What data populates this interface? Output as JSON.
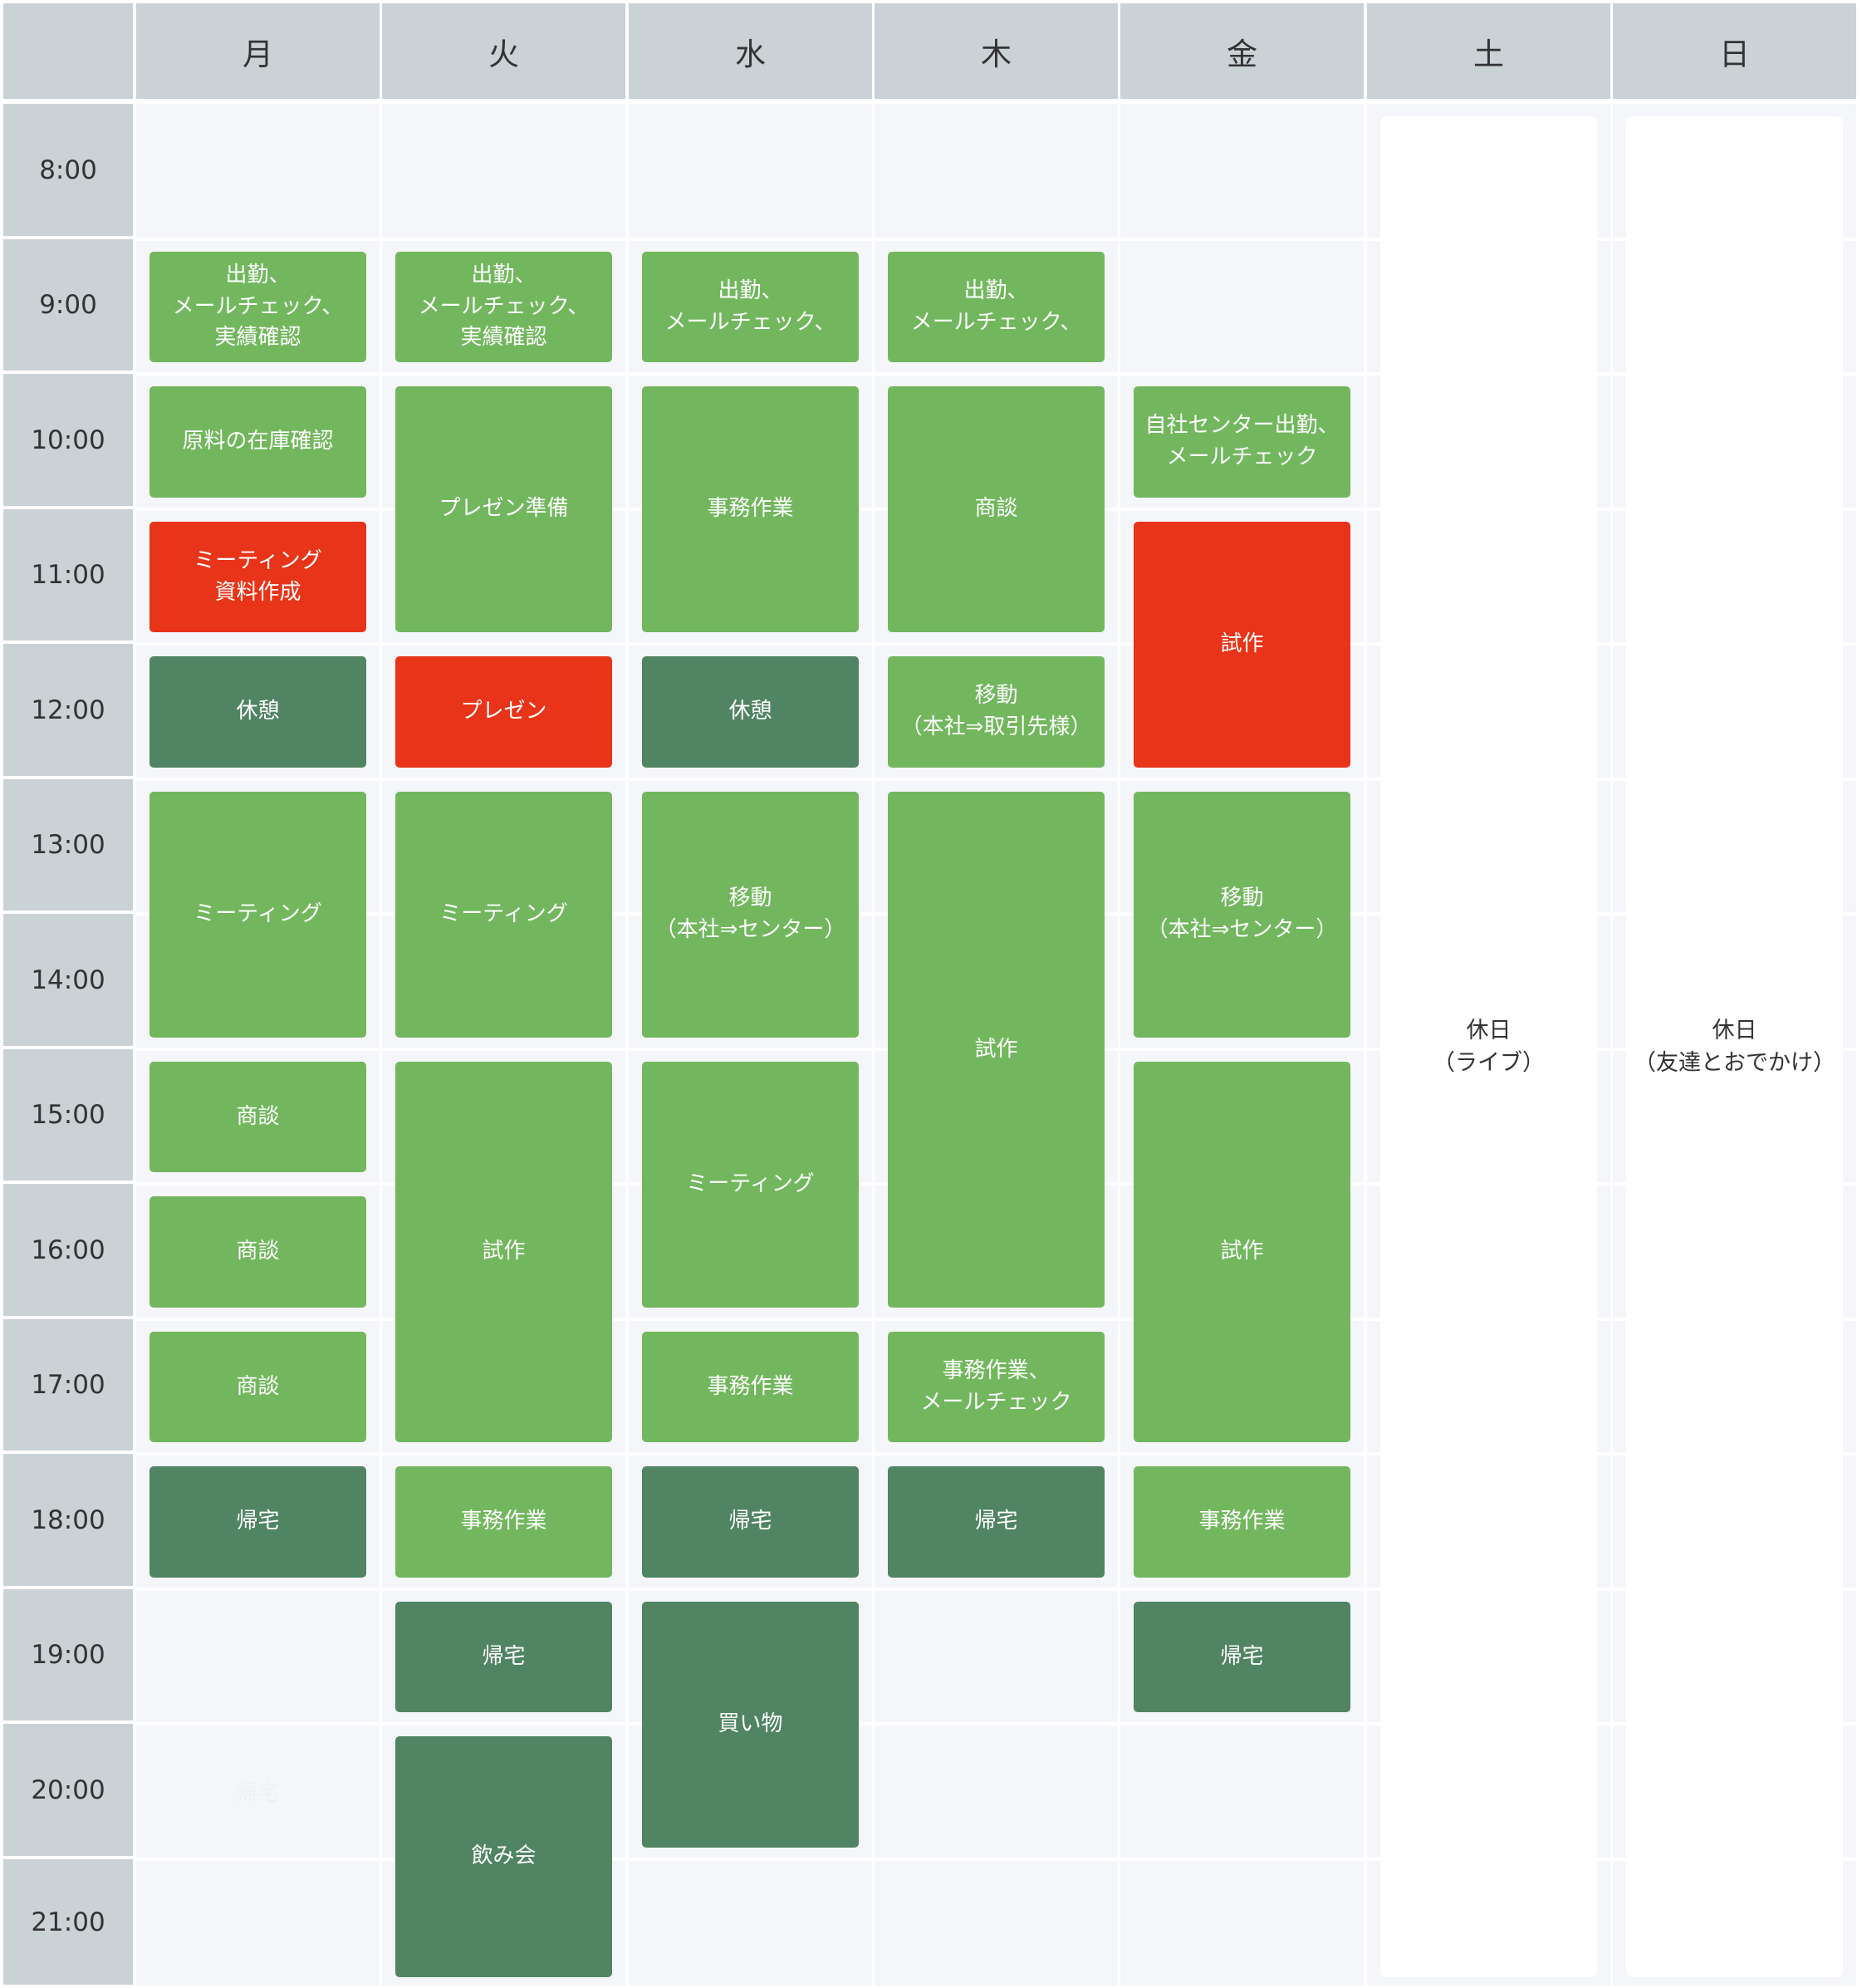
{
  "days": [
    "月",
    "火",
    "水",
    "木",
    "金",
    "土",
    "日"
  ],
  "times": [
    "8:00",
    "9:00",
    "10:00",
    "11:00",
    "12:00",
    "13:00",
    "14:00",
    "15:00",
    "16:00",
    "17:00",
    "18:00",
    "19:00",
    "20:00",
    "21:00"
  ],
  "events": [
    {
      "day": 0,
      "start": 1,
      "end": 2,
      "style": "light",
      "label": "出勤、\nメールチェック、\n実績確認"
    },
    {
      "day": 0,
      "start": 2,
      "end": 3,
      "style": "light",
      "label": "原料の在庫確認"
    },
    {
      "day": 0,
      "start": 3,
      "end": 4,
      "style": "red",
      "label": "ミーティング\n資料作成"
    },
    {
      "day": 0,
      "start": 4,
      "end": 5,
      "style": "dark",
      "label": "休憩"
    },
    {
      "day": 0,
      "start": 5,
      "end": 7,
      "style": "light",
      "label": "ミーティング"
    },
    {
      "day": 0,
      "start": 7,
      "end": 8,
      "style": "light",
      "label": "商談"
    },
    {
      "day": 0,
      "start": 8,
      "end": 9,
      "style": "light",
      "label": "商談"
    },
    {
      "day": 0,
      "start": 9,
      "end": 10,
      "style": "light",
      "label": "商談"
    },
    {
      "day": 0,
      "start": 10,
      "end": 11,
      "style": "dark",
      "label": "帰宅"
    },
    {
      "day": 1,
      "start": 1,
      "end": 2,
      "style": "light",
      "label": "出勤、\nメールチェック、\n実績確認"
    },
    {
      "day": 1,
      "start": 2,
      "end": 4,
      "style": "light",
      "label": "プレゼン準備"
    },
    {
      "day": 1,
      "start": 4,
      "end": 5,
      "style": "red",
      "label": "プレゼン"
    },
    {
      "day": 1,
      "start": 5,
      "end": 7,
      "style": "light",
      "label": "ミーティング"
    },
    {
      "day": 1,
      "start": 7,
      "end": 10,
      "style": "light",
      "label": "試作"
    },
    {
      "day": 1,
      "start": 10,
      "end": 11,
      "style": "light",
      "label": "事務作業"
    },
    {
      "day": 1,
      "start": 11,
      "end": 12,
      "style": "dark",
      "label": "帰宅"
    },
    {
      "day": 1,
      "start": 12,
      "end": 14,
      "style": "dark",
      "label": "飲み会"
    },
    {
      "day": 2,
      "start": 1,
      "end": 2,
      "style": "light",
      "label": "出勤、\nメールチェック、"
    },
    {
      "day": 2,
      "start": 2,
      "end": 4,
      "style": "light",
      "label": "事務作業"
    },
    {
      "day": 2,
      "start": 4,
      "end": 5,
      "style": "dark",
      "label": "休憩"
    },
    {
      "day": 2,
      "start": 5,
      "end": 7,
      "style": "light",
      "label": "移動\n（本社⇒センター）"
    },
    {
      "day": 2,
      "start": 7,
      "end": 9,
      "style": "light",
      "label": "ミーティング"
    },
    {
      "day": 2,
      "start": 9,
      "end": 10,
      "style": "light",
      "label": "事務作業"
    },
    {
      "day": 2,
      "start": 10,
      "end": 11,
      "style": "dark",
      "label": "帰宅"
    },
    {
      "day": 2,
      "start": 11,
      "end": 13,
      "style": "dark",
      "label": "買い物"
    },
    {
      "day": 3,
      "start": 1,
      "end": 2,
      "style": "light",
      "label": "出勤、\nメールチェック、"
    },
    {
      "day": 3,
      "start": 2,
      "end": 4,
      "style": "light",
      "label": "商談"
    },
    {
      "day": 3,
      "start": 4,
      "end": 5,
      "style": "light",
      "label": "移動\n（本社⇒取引先様）"
    },
    {
      "day": 3,
      "start": 5,
      "end": 9,
      "style": "light",
      "label": "試作"
    },
    {
      "day": 3,
      "start": 9,
      "end": 10,
      "style": "light",
      "label": "事務作業、\nメールチェック"
    },
    {
      "day": 3,
      "start": 10,
      "end": 11,
      "style": "dark",
      "label": "帰宅"
    },
    {
      "day": 4,
      "start": 2,
      "end": 3,
      "style": "light",
      "label": "自社センター出勤、\nメールチェック"
    },
    {
      "day": 4,
      "start": 3,
      "end": 5,
      "style": "red",
      "label": "試作"
    },
    {
      "day": 4,
      "start": 5,
      "end": 7,
      "style": "light",
      "label": "移動\n（本社⇒センター）"
    },
    {
      "day": 4,
      "start": 7,
      "end": 10,
      "style": "light",
      "label": "試作"
    },
    {
      "day": 4,
      "start": 10,
      "end": 11,
      "style": "light",
      "label": "事務作業"
    },
    {
      "day": 4,
      "start": 11,
      "end": 12,
      "style": "dark",
      "label": "帰宅"
    },
    {
      "day": 5,
      "start": 0,
      "end": 14,
      "style": "holiday",
      "label": "休日\n（ライブ）"
    },
    {
      "day": 6,
      "start": 0,
      "end": 14,
      "style": "holiday",
      "label": "休日\n（友達とおでかけ）"
    }
  ],
  "faded_text": {
    "day": 0,
    "row": 12,
    "label": "帰宅"
  }
}
